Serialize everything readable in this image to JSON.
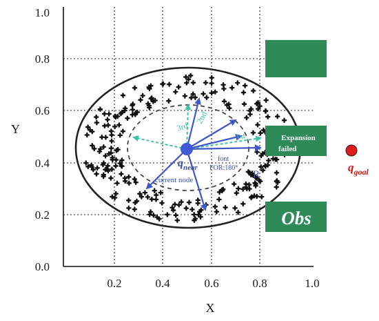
{
  "axes": {
    "x_title": "X",
    "y_title": "Y",
    "x_ticks": [
      "0.2",
      "0.4",
      "0.6",
      "0.8",
      "1.0"
    ],
    "y_ticks": [
      "0.0",
      "0.2",
      "0.4",
      "0.6",
      "0.8",
      "1.0"
    ]
  },
  "obstacles": {
    "expansion_failed_line1": "Expansion",
    "expansion_failed_line2": "failed",
    "obs_label": "Obs"
  },
  "goal": {
    "label_main": "q",
    "label_sub": "goal"
  },
  "node": {
    "label_main": "q",
    "label_sub": "near",
    "caption": "current node"
  },
  "annotations": {
    "first": "1st",
    "second": "2nd",
    "third": "3rd",
    "font_line1": "font",
    "font_line2": "FOR:180°",
    "radius": "R"
  },
  "colors": {
    "obstacle_fill": "#2e8a59",
    "arrow_blue": "#3f58c9",
    "node_blue": "#3d5bd6",
    "dashed_teal": "#3fc2a4",
    "goal_red": "#e01b1b",
    "goal_text": "#d61616",
    "point_color": "#111111"
  }
}
